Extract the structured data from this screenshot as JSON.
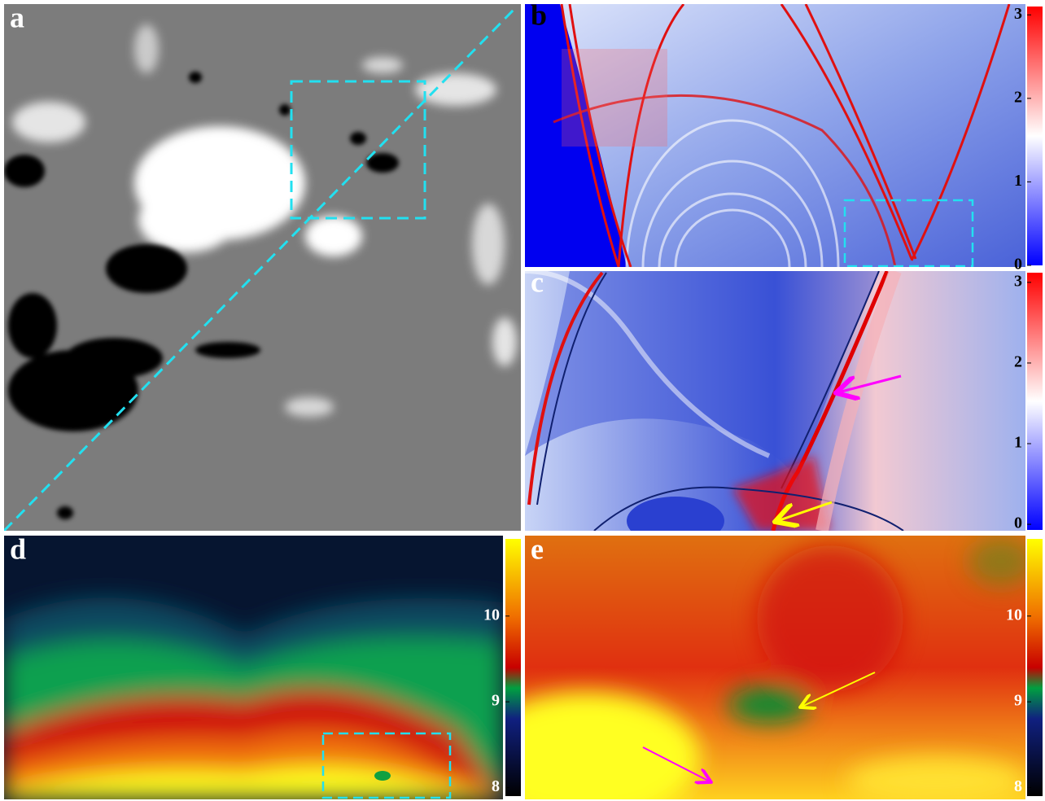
{
  "panels": [
    {
      "label": "a"
    },
    {
      "label": "b",
      "colorbar": {
        "range": [
          0,
          3.1
        ],
        "ticks": [
          0,
          1,
          2,
          3
        ]
      }
    },
    {
      "label": "c",
      "colorbar": {
        "range": [
          -0.07,
          3.12
        ],
        "ticks": [
          0,
          1,
          2,
          3
        ]
      }
    },
    {
      "label": "d",
      "colorbar": {
        "range": [
          7.9,
          10.9
        ],
        "ticks": [
          8,
          9,
          10
        ]
      }
    },
    {
      "label": "e",
      "colorbar": {
        "range": [
          7.9,
          10.9
        ],
        "ticks": [
          8,
          9,
          10
        ]
      }
    }
  ]
}
